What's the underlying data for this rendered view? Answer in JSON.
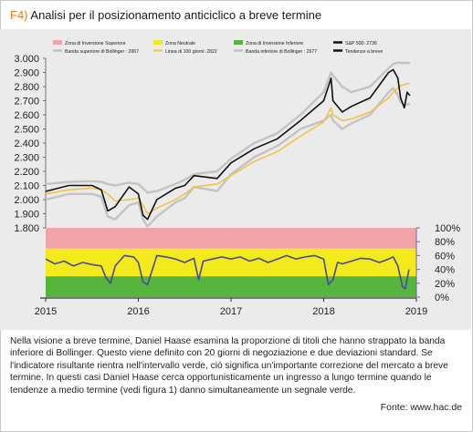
{
  "figure": {
    "tag": "F4)",
    "title": "Analisi per il posizionamento anticiclico a breve termine",
    "description": "Nella visione a breve termine, Daniel Haase esamina la proporzione di titoli che hanno strappato la banda inferiore di Bollinger. Questo viene definito con 20 giorni di negoziazione e due deviazioni standard. Se l'indicatore risultante rientra nell'intervallo verde, ciò significa un'importante correzione del mercato a breve termine. In questi casi Daniel Haase cerca opportunisticamente un ingresso a lungo termine quando le tendenze a medio termine (vedi figura 1) danno simultaneamente un segnale verde.",
    "source": "Fonte: www.hac.de"
  },
  "colors": {
    "zone_upper": "#f2a3a8",
    "zone_neutral": "#f2ea1a",
    "zone_lower": "#55b53c",
    "price_line": "#111111",
    "bollinger_bands": "#c3c3c3",
    "ma_line": "#f3c24a",
    "indicator_line": "#4a4a9a",
    "tag": "#e07a1f"
  },
  "chart_data": [
    {
      "type": "line",
      "title": "",
      "ylim": [
        1800,
        3000
      ],
      "y_ticks": [
        "3.000",
        "2.900",
        "2.800",
        "2.700",
        "2.600",
        "2.500",
        "2.400",
        "2.300",
        "2.200",
        "2.100",
        "2.000",
        "1.900",
        "1.800"
      ],
      "legend": [
        {
          "label": "Zona di Inversione Superiore",
          "color": "#f2a3a8"
        },
        {
          "label": "Zona Neutrale",
          "color": "#f2ea1a"
        },
        {
          "label": "Zona di Inversione Inferiore",
          "color": "#55b53c"
        },
        {
          "label": "S&P 500: 2736",
          "color": "#111111"
        },
        {
          "label": "Banda superiore di Bollinger : 2967",
          "color": "#c3c3c3"
        },
        {
          "label": "Linea di 100 giorni: 2822",
          "color": "#f3c24a"
        },
        {
          "label": "Banda inferiore di Bollinger : 2677",
          "color": "#c3c3c3"
        },
        {
          "label": "Tendenze a breve",
          "color": "#111111"
        }
      ],
      "x": [
        2015.0,
        2015.25,
        2015.5,
        2015.6,
        2015.67,
        2015.75,
        2015.9,
        2016.0,
        2016.05,
        2016.1,
        2016.2,
        2016.4,
        2016.5,
        2016.6,
        2016.85,
        2017.0,
        2017.25,
        2017.5,
        2017.75,
        2018.0,
        2018.08,
        2018.1,
        2018.2,
        2018.3,
        2018.5,
        2018.7,
        2018.75,
        2018.8,
        2018.83,
        2018.87,
        2018.9,
        2018.93
      ],
      "series": [
        {
          "values": [
            2058,
            2100,
            2100,
            2070,
            1920,
            1950,
            2090,
            2040,
            1890,
            1860,
            2000,
            2080,
            2100,
            2170,
            2150,
            2260,
            2360,
            2430,
            2560,
            2700,
            2860,
            2700,
            2620,
            2660,
            2720,
            2900,
            2920,
            2860,
            2720,
            2650,
            2760,
            2736
          ]
        },
        {
          "values": [
            2110,
            2125,
            2130,
            2125,
            2110,
            2100,
            2120,
            2110,
            2080,
            2050,
            2060,
            2110,
            2140,
            2180,
            2200,
            2290,
            2400,
            2470,
            2600,
            2760,
            2900,
            2880,
            2800,
            2760,
            2800,
            2930,
            2960,
            2970,
            2968,
            2967,
            2967,
            2967
          ]
        },
        {
          "values": [
            2040,
            2070,
            2080,
            2070,
            2040,
            1990,
            2000,
            2010,
            1960,
            1900,
            1940,
            2000,
            2040,
            2090,
            2110,
            2170,
            2270,
            2340,
            2450,
            2550,
            2650,
            2600,
            2560,
            2570,
            2620,
            2720,
            2760,
            2790,
            2805,
            2815,
            2820,
            2822
          ]
        },
        {
          "values": [
            2000,
            2040,
            2040,
            2020,
            1880,
            1860,
            1960,
            1980,
            1860,
            1810,
            1880,
            1980,
            2010,
            2090,
            2060,
            2180,
            2300,
            2380,
            2500,
            2560,
            2600,
            2560,
            2500,
            2540,
            2600,
            2760,
            2790,
            2740,
            2690,
            2670,
            2675,
            2677
          ]
        }
      ]
    },
    {
      "type": "line",
      "title": "",
      "ylim": [
        0,
        100
      ],
      "y_ticks": [
        "100%",
        "80%",
        "60%",
        "40%",
        "20%",
        "0%"
      ],
      "x_ticks": [
        "2015",
        "2016",
        "2017",
        "2018",
        "2019"
      ],
      "zones": [
        {
          "name": "Zona di Inversione Superiore",
          "from": 70,
          "to": 100
        },
        {
          "name": "Zona Neutrale",
          "from": 30,
          "to": 70
        },
        {
          "name": "Zona di Inversione Inferiore",
          "from": 0,
          "to": 30
        }
      ],
      "x": [
        2015.0,
        2015.1,
        2015.2,
        2015.3,
        2015.4,
        2015.5,
        2015.6,
        2015.65,
        2015.7,
        2015.75,
        2015.85,
        2015.95,
        2016.0,
        2016.05,
        2016.1,
        2016.2,
        2016.3,
        2016.4,
        2016.5,
        2016.6,
        2016.65,
        2016.7,
        2016.8,
        2016.9,
        2017.0,
        2017.1,
        2017.2,
        2017.3,
        2017.4,
        2017.5,
        2017.6,
        2017.7,
        2017.8,
        2017.9,
        2018.0,
        2018.05,
        2018.1,
        2018.15,
        2018.2,
        2018.3,
        2018.4,
        2018.5,
        2018.6,
        2018.7,
        2018.75,
        2018.8,
        2018.85,
        2018.88,
        2018.92
      ],
      "series": [
        {
          "values": [
            55,
            48,
            52,
            45,
            50,
            47,
            45,
            28,
            20,
            45,
            60,
            58,
            50,
            22,
            18,
            60,
            58,
            55,
            50,
            56,
            25,
            52,
            55,
            58,
            55,
            58,
            52,
            56,
            50,
            55,
            60,
            55,
            58,
            60,
            55,
            18,
            25,
            50,
            48,
            52,
            56,
            55,
            50,
            55,
            58,
            45,
            15,
            12,
            40
          ]
        }
      ]
    }
  ]
}
